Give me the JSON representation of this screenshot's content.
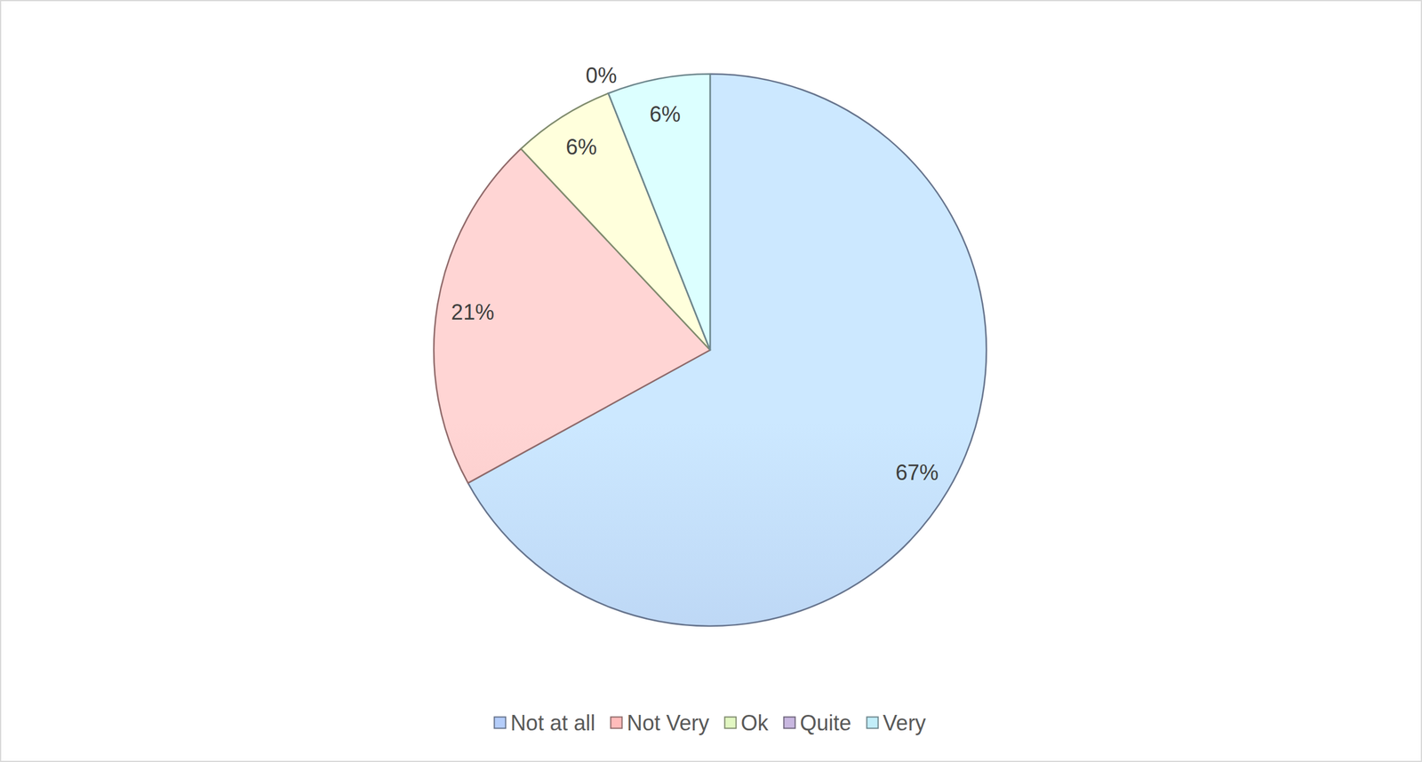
{
  "chart_data": {
    "type": "pie",
    "categories": [
      "Not at all",
      "Not Very",
      "Ok",
      "Quite",
      "Very"
    ],
    "values": [
      67,
      21,
      6,
      0,
      6
    ],
    "value_labels": [
      "67%",
      "21%",
      "6%",
      "0%",
      "6%"
    ],
    "colors": [
      "#b4cdfa",
      "#ffbcbb",
      "#e2f7c2",
      "#c8b7e0",
      "#c2eef9"
    ],
    "data_labels": true,
    "legend": "bottom"
  }
}
